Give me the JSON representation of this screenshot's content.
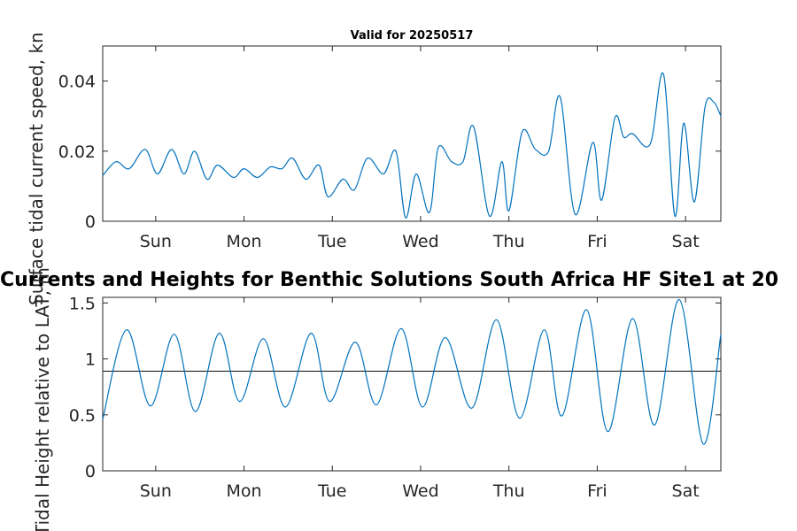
{
  "figure": {
    "title_top": "Valid for 20250517",
    "title_main": "Currents and Heights for Benthic Solutions South Africa HF Site1 at 20"
  },
  "colors": {
    "line": "#0072BD",
    "reference": "#262626",
    "axes": "#262626"
  },
  "chart_data": [
    {
      "type": "line",
      "title": "Valid for 20250517",
      "xlabel": "",
      "ylabel": "Surface tidal current speed, kn",
      "x_tick_labels": [
        "Sun",
        "Mon",
        "Tue",
        "Wed",
        "Thu",
        "Fri",
        "Sat"
      ],
      "xlim_days": [
        0,
        7
      ],
      "ylim": [
        0,
        0.05
      ],
      "y_ticks": [
        0,
        0.02,
        0.04
      ],
      "y_tick_labels": [
        "0",
        "0.02",
        "0.04"
      ],
      "grid": false,
      "series": [
        {
          "x": [
            0,
            0.15,
            0.3,
            0.48,
            0.62,
            0.78,
            0.92,
            1.04,
            1.18,
            1.3,
            1.48,
            1.6,
            1.75,
            1.9,
            2.03,
            2.15,
            2.3,
            2.45,
            2.55,
            2.72,
            2.85,
            3.0,
            3.18,
            3.32,
            3.43,
            3.55,
            3.7,
            3.8,
            3.95,
            4.08,
            4.2,
            4.38,
            4.52,
            4.6,
            4.75,
            4.9,
            5.05,
            5.18,
            5.35,
            5.55,
            5.65,
            5.8,
            5.9,
            6.0,
            6.2,
            6.35,
            6.48,
            6.58,
            6.7,
            6.82,
            6.92,
            7.0
          ],
          "y": [
            0.013,
            0.017,
            0.015,
            0.0205,
            0.0135,
            0.0205,
            0.0135,
            0.02,
            0.012,
            0.016,
            0.0125,
            0.015,
            0.0125,
            0.0155,
            0.015,
            0.018,
            0.012,
            0.016,
            0.007,
            0.012,
            0.009,
            0.018,
            0.0135,
            0.02,
            0.001,
            0.0135,
            0.0025,
            0.021,
            0.017,
            0.017,
            0.027,
            0.0015,
            0.017,
            0.003,
            0.0255,
            0.0205,
            0.02,
            0.0355,
            0.002,
            0.0225,
            0.006,
            0.0295,
            0.024,
            0.025,
            0.022,
            0.042,
            0.0015,
            0.028,
            0.0055,
            0.0325,
            0.034,
            0.03
          ]
        }
      ]
    },
    {
      "type": "line",
      "title": "Currents and Heights for Benthic Solutions South Africa HF Site1 at 20",
      "xlabel": "",
      "ylabel": "Tidal Height relative to LAT, m",
      "x_tick_labels": [
        "Sun",
        "Mon",
        "Tue",
        "Wed",
        "Thu",
        "Fri",
        "Sat"
      ],
      "xlim_days": [
        0,
        7
      ],
      "ylim": [
        0,
        1.55
      ],
      "y_ticks": [
        0,
        0.5,
        1,
        1.5
      ],
      "y_tick_labels": [
        "0",
        "0.5",
        "1",
        "1.5"
      ],
      "reference_line": 0.89,
      "grid": false,
      "series": [
        {
          "x": [
            0,
            0.27,
            0.54,
            0.81,
            1.05,
            1.32,
            1.55,
            1.82,
            2.07,
            2.36,
            2.57,
            2.86,
            3.1,
            3.38,
            3.62,
            3.88,
            4.18,
            4.46,
            4.72,
            5.0,
            5.2,
            5.48,
            5.72,
            6.0,
            6.25,
            6.53,
            6.8,
            7.0
          ],
          "y": [
            0.46,
            1.26,
            0.58,
            1.22,
            0.53,
            1.23,
            0.62,
            1.18,
            0.57,
            1.23,
            0.62,
            1.15,
            0.59,
            1.27,
            0.57,
            1.19,
            0.56,
            1.35,
            0.47,
            1.26,
            0.49,
            1.44,
            0.35,
            1.36,
            0.41,
            1.53,
            0.24,
            1.22
          ]
        }
      ]
    }
  ]
}
